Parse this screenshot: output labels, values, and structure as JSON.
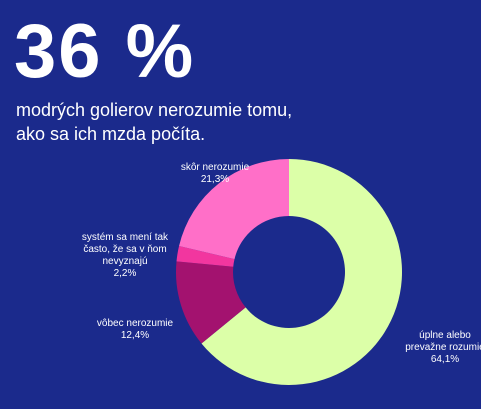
{
  "chart_data": {
    "type": "donut",
    "title": "36 %",
    "subtitle": "modrých golierov nerozumie tomu, ako sa ich mzda počíta.",
    "categories": [
      "úplne alebo prevažne rozumie",
      "vôbec nerozumie",
      "systém sa mení tak často, že sa v ňom nevyznajú",
      "skôr nerozumie"
    ],
    "values": [
      64.1,
      12.4,
      2.2,
      21.3
    ],
    "value_labels": [
      "64,1%",
      "12,4%",
      "2,2%",
      "21,3%"
    ],
    "colors": [
      "#dcffa8",
      "#a3126f",
      "#f2369f",
      "#ff6fc8"
    ]
  }
}
